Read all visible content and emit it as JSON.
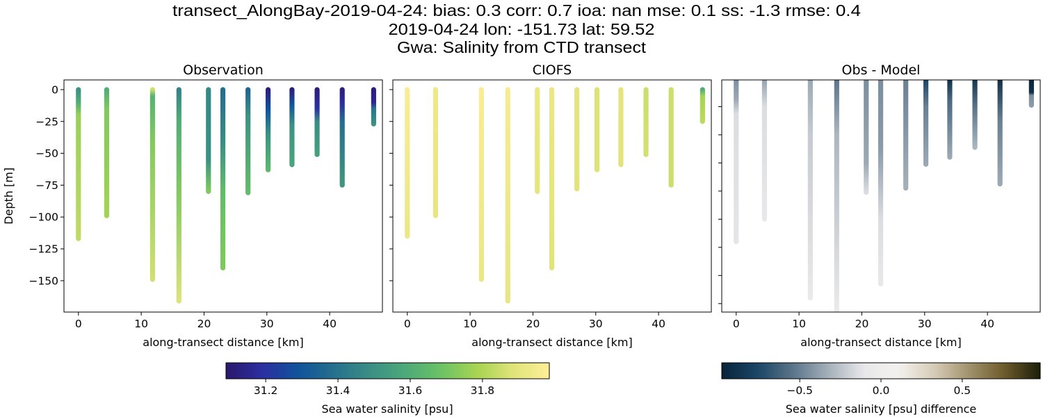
{
  "title_lines": [
    "transect_AlongBay-2019-04-24: bias: 0.3  corr: 0.7  ioa: nan  mse: 0.1  ss: -1.3  rmse: 0.4",
    "2019-04-24 lon: -151.73 lat: 59.52",
    "Gwa: Salinity from CTD transect"
  ],
  "chart_data": [
    {
      "type": "scatter",
      "title": "Observation",
      "xlabel": "along-transect distance [km]",
      "ylabel": "Depth [m]",
      "xlim": [
        -2.3,
        48.4
      ],
      "ylim": [
        -174.6,
        7.6
      ],
      "xticks": [
        0,
        10,
        20,
        30,
        40
      ],
      "xticklabels": [
        "0",
        "10",
        "20",
        "30",
        "40"
      ],
      "yticks": [
        0,
        -25,
        -50,
        -75,
        -100,
        -125,
        -150
      ],
      "yticklabels": [
        "0",
        "−25",
        "−50",
        "−75",
        "−100",
        "−125",
        "−150"
      ],
      "colormap": "salinity",
      "profiles": [
        {
          "distance": 0,
          "bottom": -117,
          "stops": [
            [
              0,
              31.5
            ],
            [
              -10,
              31.6
            ],
            [
              -20,
              31.76
            ],
            [
              -117,
              31.83
            ]
          ]
        },
        {
          "distance": 4.5,
          "bottom": -99,
          "stops": [
            [
              0,
              31.6
            ],
            [
              -15,
              31.72
            ],
            [
              -99,
              31.78
            ]
          ]
        },
        {
          "distance": 11.8,
          "bottom": -149,
          "stops": [
            [
              0,
              31.85
            ],
            [
              -5,
              31.62
            ],
            [
              -40,
              31.72
            ],
            [
              -149,
              31.86
            ]
          ]
        },
        {
          "distance": 16,
          "bottom": -166,
          "stops": [
            [
              0,
              31.45
            ],
            [
              -25,
              31.6
            ],
            [
              -80,
              31.72
            ],
            [
              -166,
              31.88
            ]
          ]
        },
        {
          "distance": 20.7,
          "bottom": -80,
          "stops": [
            [
              0,
              31.47
            ],
            [
              -55,
              31.5
            ],
            [
              -80,
              31.72
            ]
          ]
        },
        {
          "distance": 23,
          "bottom": -140,
          "stops": [
            [
              0,
              31.38
            ],
            [
              -40,
              31.48
            ],
            [
              -80,
              31.66
            ],
            [
              -140,
              31.72
            ]
          ]
        },
        {
          "distance": 27,
          "bottom": -81,
          "stops": [
            [
              0,
              31.35
            ],
            [
              -20,
              31.5
            ],
            [
              -81,
              31.66
            ]
          ]
        },
        {
          "distance": 30.2,
          "bottom": -63,
          "stops": [
            [
              0,
              31.12
            ],
            [
              -15,
              31.28
            ],
            [
              -35,
              31.5
            ],
            [
              -63,
              31.64
            ]
          ]
        },
        {
          "distance": 34,
          "bottom": -59,
          "stops": [
            [
              0,
              31.12
            ],
            [
              -12,
              31.3
            ],
            [
              -28,
              31.5
            ],
            [
              -59,
              31.57
            ]
          ]
        },
        {
          "distance": 38,
          "bottom": -51,
          "stops": [
            [
              0,
              31.12
            ],
            [
              -15,
              31.2
            ],
            [
              -25,
              31.48
            ],
            [
              -51,
              31.55
            ]
          ]
        },
        {
          "distance": 42,
          "bottom": -75,
          "stops": [
            [
              0,
              31.12
            ],
            [
              -10,
              31.18
            ],
            [
              -25,
              31.38
            ],
            [
              -75,
              31.52
            ]
          ]
        },
        {
          "distance": 47,
          "bottom": -27,
          "stops": [
            [
              0,
              31.12
            ],
            [
              -10,
              31.15
            ],
            [
              -15,
              31.4
            ],
            [
              -27,
              31.5
            ]
          ]
        }
      ]
    },
    {
      "type": "scatter",
      "title": "CIOFS",
      "xlabel": "along-transect distance [km]",
      "xlim": [
        -2.3,
        48.4
      ],
      "ylim": [
        -174.6,
        7.6
      ],
      "xticks": [
        0,
        10,
        20,
        30,
        40
      ],
      "xticklabels": [
        "0",
        "10",
        "20",
        "30",
        "40"
      ],
      "yticks": [
        0,
        -25,
        -50,
        -75,
        -100,
        -125,
        -150
      ],
      "colormap": "salinity",
      "profiles": [
        {
          "distance": 0,
          "bottom": -115,
          "stops": [
            [
              0,
              31.97
            ],
            [
              -115,
              31.92
            ]
          ]
        },
        {
          "distance": 4.5,
          "bottom": -99,
          "stops": [
            [
              0,
              31.93
            ],
            [
              -99,
              31.91
            ]
          ]
        },
        {
          "distance": 11.8,
          "bottom": -149,
          "stops": [
            [
              0,
              31.97
            ],
            [
              -149,
              31.92
            ]
          ]
        },
        {
          "distance": 16,
          "bottom": -166,
          "stops": [
            [
              0,
              31.96
            ],
            [
              -166,
              31.91
            ]
          ]
        },
        {
          "distance": 20.7,
          "bottom": -80,
          "stops": [
            [
              0,
              31.92
            ],
            [
              -80,
              31.9
            ]
          ]
        },
        {
          "distance": 23,
          "bottom": -140,
          "stops": [
            [
              0,
              31.92
            ],
            [
              -140,
              31.89
            ]
          ]
        },
        {
          "distance": 27,
          "bottom": -78,
          "stops": [
            [
              0,
              31.9
            ],
            [
              -78,
              31.89
            ]
          ]
        },
        {
          "distance": 30.2,
          "bottom": -63,
          "stops": [
            [
              0,
              31.88
            ],
            [
              -63,
              31.88
            ]
          ]
        },
        {
          "distance": 34,
          "bottom": -59,
          "stops": [
            [
              0,
              31.9
            ],
            [
              -59,
              31.89
            ]
          ]
        },
        {
          "distance": 38,
          "bottom": -51,
          "stops": [
            [
              0,
              31.85
            ],
            [
              -51,
              31.86
            ]
          ]
        },
        {
          "distance": 42,
          "bottom": -75,
          "stops": [
            [
              0,
              31.85
            ],
            [
              -75,
              31.85
            ]
          ]
        },
        {
          "distance": 47,
          "bottom": -25,
          "stops": [
            [
              0,
              31.6
            ],
            [
              -5,
              31.78
            ],
            [
              -25,
              31.82
            ]
          ]
        }
      ]
    },
    {
      "type": "scatter",
      "title": "Obs - Model",
      "xlabel": "along-transect distance [km]",
      "xlim": [
        -2.3,
        48.4
      ],
      "ylim": [
        -166,
        -1
      ],
      "xticks": [
        0,
        10,
        20,
        30,
        40
      ],
      "xticklabels": [
        "0",
        "10",
        "20",
        "30",
        "40"
      ],
      "yticks": [
        -20,
        -40,
        -60,
        -80,
        -100,
        -120,
        -140,
        -160
      ],
      "colormap": "difference",
      "profiles": [
        {
          "distance": 0,
          "bottom": -116,
          "stops": [
            [
              0,
              -0.45
            ],
            [
              -15,
              -0.35
            ],
            [
              -25,
              -0.15
            ],
            [
              -116,
              -0.12
            ]
          ]
        },
        {
          "distance": 4.5,
          "bottom": -100,
          "stops": [
            [
              0,
              -0.38
            ],
            [
              -20,
              -0.15
            ],
            [
              -100,
              -0.1
            ]
          ]
        },
        {
          "distance": 11.8,
          "bottom": -156,
          "stops": [
            [
              0,
              -0.35
            ],
            [
              -40,
              -0.22
            ],
            [
              -156,
              -0.08
            ]
          ]
        },
        {
          "distance": 16,
          "bottom": -166,
          "stops": [
            [
              0,
              -0.55
            ],
            [
              -40,
              -0.3
            ],
            [
              -166,
              -0.05
            ]
          ]
        },
        {
          "distance": 20.7,
          "bottom": -81,
          "stops": [
            [
              0,
              -0.45
            ],
            [
              -60,
              -0.35
            ],
            [
              -81,
              -0.15
            ]
          ]
        },
        {
          "distance": 23,
          "bottom": -146,
          "stops": [
            [
              0,
              -0.45
            ],
            [
              -50,
              -0.4
            ],
            [
              -100,
              -0.15
            ],
            [
              -146,
              -0.1
            ]
          ]
        },
        {
          "distance": 27,
          "bottom": -78,
          "stops": [
            [
              0,
              -0.5
            ],
            [
              -78,
              -0.32
            ]
          ]
        },
        {
          "distance": 30.2,
          "bottom": -61,
          "stops": [
            [
              0,
              -0.78
            ],
            [
              -20,
              -0.5
            ],
            [
              -61,
              -0.35
            ]
          ]
        },
        {
          "distance": 34,
          "bottom": -56,
          "stops": [
            [
              0,
              -0.92
            ],
            [
              -15,
              -0.6
            ],
            [
              -56,
              -0.35
            ]
          ]
        },
        {
          "distance": 38,
          "bottom": -49,
          "stops": [
            [
              0,
              -0.88
            ],
            [
              -20,
              -0.55
            ],
            [
              -49,
              -0.3
            ]
          ]
        },
        {
          "distance": 42,
          "bottom": -75,
          "stops": [
            [
              0,
              -0.92
            ],
            [
              -30,
              -0.5
            ],
            [
              -75,
              -0.35
            ]
          ]
        },
        {
          "distance": 47,
          "bottom": -19,
          "stops": [
            [
              0,
              -0.96
            ],
            [
              -10,
              -0.9
            ],
            [
              -12,
              -0.45
            ],
            [
              -19,
              -0.4
            ]
          ]
        }
      ]
    }
  ],
  "colorbars": [
    {
      "label": "Sea water salinity [psu]",
      "range": [
        31.09,
        31.985
      ],
      "ticks": [
        31.2,
        31.4,
        31.6,
        31.8
      ],
      "ticklabels": [
        "31.2",
        "31.4",
        "31.6",
        "31.8"
      ],
      "colormap": "salinity"
    },
    {
      "label": "Sea water salinity [psu] difference",
      "range": [
        -0.98,
        0.98
      ],
      "ticks": [
        -0.5,
        0,
        0.5
      ],
      "ticklabels": [
        "−0.5",
        "0.0",
        "0.5"
      ],
      "colormap": "difference"
    }
  ],
  "colormaps": {
    "salinity": [
      "#2a186c",
      "#2c2ea2",
      "#10539a",
      "#266f8e",
      "#3a8e84",
      "#4caa79",
      "#6cc364",
      "#a8d452",
      "#e1e47a",
      "#fdee99"
    ],
    "difference": [
      "#08243a",
      "#1a4566",
      "#5a7489",
      "#a3afb9",
      "#e8e8ea",
      "#f4f1ee",
      "#d6ccb8",
      "#a1916c",
      "#6c5a2a",
      "#1c1e0b"
    ]
  }
}
